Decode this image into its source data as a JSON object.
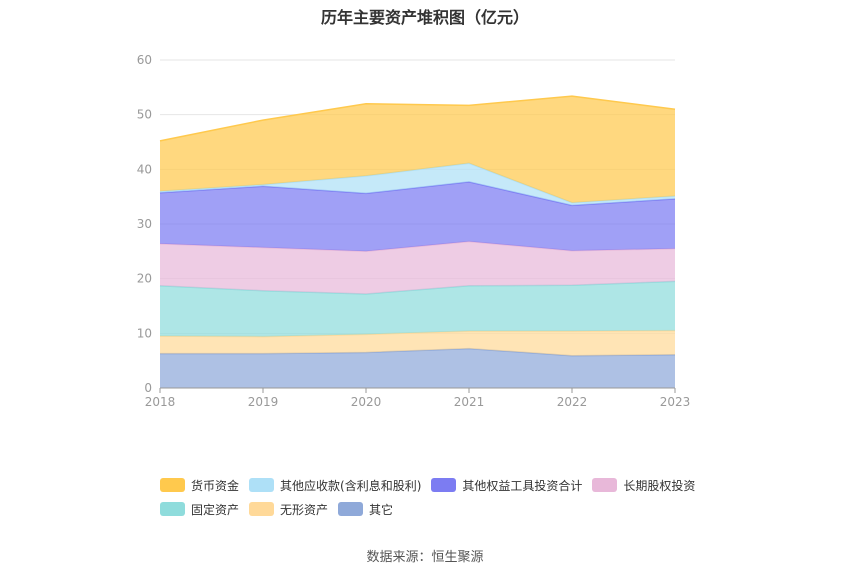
{
  "chart_data": {
    "type": "area",
    "stacked": true,
    "title": "历年主要资产堆积图（亿元）",
    "x": [
      "2018",
      "2019",
      "2020",
      "2021",
      "2022",
      "2023"
    ],
    "ylim": [
      0,
      60
    ],
    "yticks": [
      0,
      10,
      20,
      30,
      40,
      50,
      60
    ],
    "grid": true,
    "legend_position": "bottom",
    "series": [
      {
        "name": "其它",
        "color": "#8fa9d9",
        "values": [
          6.3,
          6.3,
          6.5,
          7.2,
          5.9,
          6.1
        ]
      },
      {
        "name": "无形资产",
        "color": "#ffd999",
        "values": [
          3.2,
          3.1,
          3.3,
          3.2,
          4.5,
          4.4
        ]
      },
      {
        "name": "固定资产",
        "color": "#8fdcdc",
        "values": [
          9.2,
          8.4,
          7.4,
          8.3,
          8.4,
          9.0
        ]
      },
      {
        "name": "长期股权投资",
        "color": "#e8b8d9",
        "values": [
          7.7,
          7.9,
          7.8,
          8.1,
          6.3,
          6.0
        ]
      },
      {
        "name": "其他权益工具投资合计",
        "color": "#7c7cf2",
        "values": [
          9.3,
          11.2,
          10.6,
          10.9,
          8.3,
          9.1
        ]
      },
      {
        "name": "其他应收款(含利息和股利)",
        "color": "#aee0f7",
        "values": [
          0.3,
          0.3,
          3.2,
          3.4,
          0.5,
          0.5
        ]
      },
      {
        "name": "货币资金",
        "color": "#ffc94d",
        "values": [
          9.2,
          11.8,
          13.2,
          10.6,
          19.5,
          15.9
        ]
      }
    ]
  },
  "legend_rows": [
    [
      {
        "label": "货币资金",
        "color": "#ffc94d"
      },
      {
        "label": "其他应收款(含利息和股利)",
        "color": "#aee0f7"
      },
      {
        "label": "其他权益工具投资合计",
        "color": "#7c7cf2"
      },
      {
        "label": "长期股权投资",
        "color": "#e8b8d9"
      }
    ],
    [
      {
        "label": "固定资产",
        "color": "#8fdcdc"
      },
      {
        "label": "无形资产",
        "color": "#ffd999"
      },
      {
        "label": "其它",
        "color": "#8fa9d9"
      }
    ]
  ],
  "source": "数据来源：恒生聚源"
}
